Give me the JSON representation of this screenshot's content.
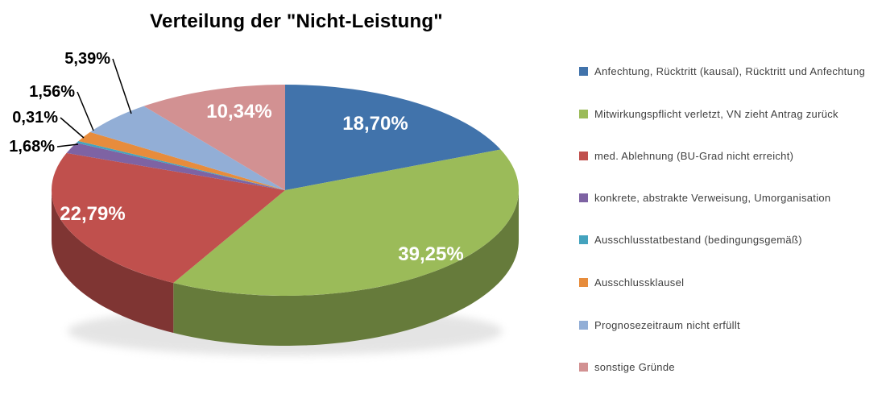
{
  "title": "Verteilung der \"Nicht-Leistung\"",
  "chart_data": {
    "type": "pie",
    "effect": "3d",
    "title": "Verteilung der \"Nicht-Leistung\"",
    "legend_position": "right",
    "start_angle_deg": 90,
    "direction": "clockwise",
    "side_shade_factor": 0.66,
    "slices": [
      {
        "label": "Anfechtung, Rücktritt (kausal), Rücktritt und Anfechtung",
        "value": 18.7,
        "display": "18,70%",
        "color": "#4173AB",
        "label_placement": "inside"
      },
      {
        "label": "Mitwirkungspflicht verletzt, VN zieht Antrag zurück",
        "value": 39.25,
        "display": "39,25%",
        "color": "#9BBB59",
        "label_placement": "inside"
      },
      {
        "label": "med. Ablehnung (BU-Grad nicht erreicht)",
        "value": 22.79,
        "display": "22,79%",
        "color": "#C0504D",
        "label_placement": "inside"
      },
      {
        "label": "konkrete, abstrakte Verweisung, Umorganisation",
        "value": 1.68,
        "display": "1,68%",
        "color": "#7E63A3",
        "label_placement": "outside"
      },
      {
        "label": "Ausschlusstatbestand (bedingungsgemäß)",
        "value": 0.31,
        "display": "0,31%",
        "color": "#44A3BE",
        "label_placement": "outside"
      },
      {
        "label": "Ausschlussklausel",
        "value": 1.56,
        "display": "1,56%",
        "color": "#E78C3C",
        "label_placement": "outside"
      },
      {
        "label": "Prognosezeitraum nicht erfüllt",
        "value": 5.39,
        "display": "5,39%",
        "color": "#92AED6",
        "label_placement": "outside"
      },
      {
        "label": "sonstige Gründe",
        "value": 10.34,
        "display": "10,34%",
        "color": "#D29192",
        "label_placement": "inside"
      }
    ]
  }
}
